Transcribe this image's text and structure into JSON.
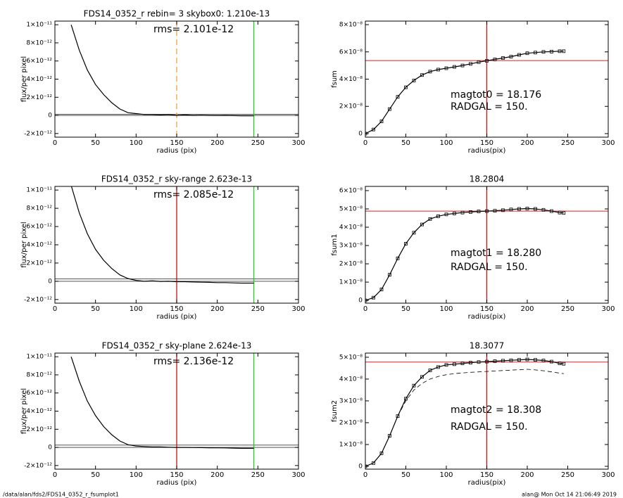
{
  "chart_data": [
    {
      "type": "line",
      "title": "FDS14_0352_r rebin= 3    skybox0:  1.210e-13",
      "x_label": "radius (pix)",
      "y_label": "flux/per pixel",
      "annotations": [
        "rms= 2.101e-12"
      ],
      "xlim": [
        0,
        300
      ],
      "xticks": [
        0,
        50,
        100,
        150,
        200,
        250,
        300
      ],
      "ylim": [
        -2.4e-12,
        1.04e-11
      ],
      "yticks": [
        {
          "value": -2e-12,
          "label": "-2×10⁻¹²"
        },
        0,
        {
          "value": 2e-12,
          "label": "2×10⁻¹²"
        },
        {
          "value": 4e-12,
          "label": "4×10⁻¹²"
        },
        {
          "value": 6e-12,
          "label": "6×10⁻¹²"
        },
        {
          "value": 8e-12,
          "label": "8×10⁻¹²"
        },
        {
          "value": 1e-11,
          "label": "1×10⁻¹¹"
        }
      ],
      "x": [
        20,
        30,
        40,
        50,
        60,
        70,
        80,
        90,
        100,
        110,
        120,
        130,
        140,
        150,
        160,
        170,
        180,
        190,
        200,
        210,
        220,
        230,
        240,
        245
      ],
      "series": [
        {
          "color": "#000000",
          "values": [
            1e-11,
            7.2e-12,
            5e-12,
            3.4e-12,
            2.3e-12,
            1.4e-12,
            7e-13,
            3e-13,
            2e-13,
            1e-13,
            1e-13,
            5e-14,
            1e-13,
            0,
            5e-14,
            0,
            2e-14,
            0,
            -2e-14,
            0,
            -3e-14,
            -5e-14,
            -5e-14,
            -5e-14
          ]
        }
      ],
      "hlines": [
        {
          "value": 0,
          "color": "#555555"
        },
        {
          "value": 1.2e-13,
          "color": "#555555"
        }
      ],
      "vlines": [
        {
          "value": 150,
          "color": "#f0a040",
          "dash": true
        },
        {
          "value": 245,
          "color": "#22cc22"
        }
      ]
    },
    {
      "type": "line",
      "x_label": "radius(pix)",
      "y_label": "fsum",
      "annotations": [
        "magtot0 =  18.176",
        "RADGAL =    150."
      ],
      "xlim": [
        0,
        300
      ],
      "xticks": [
        0,
        50,
        100,
        150,
        200,
        250,
        300
      ],
      "ylim": [
        -2.6e-09,
        8.26e-08
      ],
      "yticks": [
        0,
        {
          "value": 2e-08,
          "label": "2×10⁻⁸"
        },
        {
          "value": 4e-08,
          "label": "4×10⁻⁸"
        },
        {
          "value": 6e-08,
          "label": "6×10⁻⁸"
        },
        {
          "value": 8e-08,
          "label": "8×10⁻⁸"
        }
      ],
      "marker": "square",
      "x": [
        0,
        10,
        20,
        30,
        40,
        50,
        60,
        70,
        80,
        90,
        100,
        110,
        120,
        130,
        140,
        150,
        160,
        170,
        180,
        190,
        200,
        210,
        220,
        230,
        240,
        245
      ],
      "series": [
        {
          "color": "#000000",
          "values": [
            0,
            3e-09,
            9e-09,
            1.8e-08,
            2.7e-08,
            3.4e-08,
            3.9e-08,
            4.3e-08,
            4.55e-08,
            4.7e-08,
            4.8e-08,
            4.9e-08,
            5e-08,
            5.12e-08,
            5.25e-08,
            5.35e-08,
            5.45e-08,
            5.55e-08,
            5.65e-08,
            5.78e-08,
            5.9e-08,
            5.95e-08,
            6e-08,
            6.02e-08,
            6.05e-08,
            6.05e-08
          ]
        }
      ],
      "hlines": [
        {
          "value": 5.36e-08,
          "color": "#dd2222"
        }
      ],
      "vlines": [
        {
          "value": 150,
          "color": "#cc1111"
        }
      ]
    },
    {
      "type": "line",
      "title": "FDS14_0352_r sky-range  2.623e-13",
      "x_label": "radius (pix)",
      "y_label": "flux/per pixel",
      "annotations": [
        "rms= 2.085e-12"
      ],
      "xlim": [
        0,
        300
      ],
      "xticks": [
        0,
        50,
        100,
        150,
        200,
        250,
        300
      ],
      "ylim": [
        -2.4e-12,
        1.04e-11
      ],
      "yticks": [
        {
          "value": -2e-12,
          "label": "-2×10⁻¹²"
        },
        0,
        {
          "value": 2e-12,
          "label": "2×10⁻¹²"
        },
        {
          "value": 4e-12,
          "label": "4×10⁻¹²"
        },
        {
          "value": 6e-12,
          "label": "6×10⁻¹²"
        },
        {
          "value": 8e-12,
          "label": "8×10⁻¹²"
        },
        {
          "value": 1e-11,
          "label": "1×10⁻¹¹"
        }
      ],
      "x": [
        20,
        30,
        40,
        50,
        60,
        70,
        80,
        90,
        100,
        110,
        120,
        130,
        140,
        150,
        160,
        170,
        180,
        190,
        200,
        210,
        220,
        230,
        240,
        245
      ],
      "series": [
        {
          "color": "#000000",
          "values": [
            1.05e-11,
            7.5e-12,
            5.2e-12,
            3.5e-12,
            2.3e-12,
            1.4e-12,
            7e-13,
            3e-13,
            1e-13,
            0,
            5e-14,
            -2e-14,
            0,
            -5e-14,
            -5e-14,
            -8e-14,
            -1e-13,
            -1.2e-13,
            -1.5e-13,
            -1.5e-13,
            -1.8e-13,
            -2e-13,
            -2e-13,
            -2e-13
          ]
        }
      ],
      "hlines": [
        {
          "value": 0,
          "color": "#555555"
        },
        {
          "value": 2.6e-13,
          "color": "#555555"
        }
      ],
      "vlines": [
        {
          "value": 150,
          "color": "#cc1111"
        },
        {
          "value": 245,
          "color": "#22cc22"
        }
      ]
    },
    {
      "type": "line",
      "title": "18.2804",
      "x_label": "radius(pix)",
      "y_label": "fsum1",
      "annotations": [
        "magtot1 =  18.280",
        "RADGAL =    150."
      ],
      "xlim": [
        0,
        300
      ],
      "xticks": [
        0,
        50,
        100,
        150,
        200,
        250,
        300
      ],
      "ylim": [
        -1.5e-09,
        6.23e-08
      ],
      "yticks": [
        0,
        {
          "value": 1e-08,
          "label": "1×10⁻⁸"
        },
        {
          "value": 2e-08,
          "label": "2×10⁻⁸"
        },
        {
          "value": 3e-08,
          "label": "3×10⁻⁸"
        },
        {
          "value": 4e-08,
          "label": "4×10⁻⁸"
        },
        {
          "value": 5e-08,
          "label": "5×10⁻⁸"
        },
        {
          "value": 6e-08,
          "label": "6×10⁻⁸"
        }
      ],
      "marker": "square",
      "x": [
        0,
        10,
        20,
        30,
        40,
        50,
        60,
        70,
        80,
        90,
        100,
        110,
        120,
        130,
        140,
        150,
        160,
        170,
        180,
        190,
        200,
        210,
        220,
        230,
        240,
        245
      ],
      "series": [
        {
          "color": "#000000",
          "values": [
            0,
            1.5e-09,
            6e-09,
            1.4e-08,
            2.3e-08,
            3.1e-08,
            3.7e-08,
            4.15e-08,
            4.45e-08,
            4.6e-08,
            4.7e-08,
            4.75e-08,
            4.8e-08,
            4.83e-08,
            4.86e-08,
            4.88e-08,
            4.9e-08,
            4.93e-08,
            4.97e-08,
            5e-08,
            5.02e-08,
            5e-08,
            4.95e-08,
            4.88e-08,
            4.8e-08,
            4.78e-08
          ]
        }
      ],
      "hlines": [
        {
          "value": 4.88e-08,
          "color": "#dd2222"
        }
      ],
      "vlines": [
        {
          "value": 150,
          "color": "#cc1111"
        }
      ]
    },
    {
      "type": "line",
      "title": "FDS14_0352_r sky-plane  2.624e-13",
      "x_label": "radius (pix)",
      "y_label": "flux/per pixel",
      "annotations": [
        "rms= 2.136e-12"
      ],
      "xlim": [
        0,
        300
      ],
      "xticks": [
        0,
        50,
        100,
        150,
        200,
        250,
        300
      ],
      "ylim": [
        -2.4e-12,
        1.04e-11
      ],
      "yticks": [
        {
          "value": -2e-12,
          "label": "-2×10⁻¹²"
        },
        0,
        {
          "value": 2e-12,
          "label": "2×10⁻¹²"
        },
        {
          "value": 4e-12,
          "label": "4×10⁻¹²"
        },
        {
          "value": 6e-12,
          "label": "6×10⁻¹²"
        },
        {
          "value": 8e-12,
          "label": "8×10⁻¹²"
        },
        {
          "value": 1e-11,
          "label": "1×10⁻¹¹"
        }
      ],
      "x": [
        20,
        30,
        40,
        50,
        60,
        70,
        80,
        90,
        100,
        110,
        120,
        130,
        140,
        150,
        160,
        170,
        180,
        190,
        200,
        210,
        220,
        230,
        240,
        245
      ],
      "series": [
        {
          "color": "#000000",
          "values": [
            1e-11,
            7.3e-12,
            5.1e-12,
            3.5e-12,
            2.3e-12,
            1.4e-12,
            7e-13,
            3e-13,
            1.5e-13,
            1e-13,
            5e-14,
            5e-14,
            2e-14,
            0,
            0,
            -2e-14,
            -3e-14,
            -4e-14,
            -5e-14,
            -6e-14,
            -8e-14,
            -1e-13,
            -1e-13,
            -1e-13
          ]
        }
      ],
      "hlines": [
        {
          "value": 0,
          "color": "#555555"
        },
        {
          "value": 2.6e-13,
          "color": "#555555"
        }
      ],
      "vlines": [
        {
          "value": 150,
          "color": "#cc1111"
        },
        {
          "value": 245,
          "color": "#22cc22"
        }
      ]
    },
    {
      "type": "line",
      "title": "18.3077",
      "x_label": "radius(pix)",
      "y_label": "fsum2",
      "annotations": [
        "magtot2 =  18.308",
        "RADGAL =    150."
      ],
      "xlim": [
        0,
        300
      ],
      "xticks": [
        0,
        50,
        100,
        150,
        200,
        250,
        300
      ],
      "ylim": [
        -1.3e-09,
        5.19e-08
      ],
      "yticks": [
        0,
        {
          "value": 1e-08,
          "label": "1×10⁻⁸"
        },
        {
          "value": 2e-08,
          "label": "2×10⁻⁸"
        },
        {
          "value": 3e-08,
          "label": "3×10⁻⁸"
        },
        {
          "value": 4e-08,
          "label": "4×10⁻⁸"
        },
        {
          "value": 5e-08,
          "label": "5×10⁻⁸"
        }
      ],
      "marker": "square",
      "x": [
        0,
        10,
        20,
        30,
        40,
        50,
        60,
        70,
        80,
        90,
        100,
        110,
        120,
        130,
        140,
        150,
        160,
        170,
        180,
        190,
        200,
        210,
        220,
        230,
        240,
        245
      ],
      "series": [
        {
          "color": "#000000",
          "values": [
            0,
            1.5e-09,
            6e-09,
            1.4e-08,
            2.3e-08,
            3.1e-08,
            3.7e-08,
            4.1e-08,
            4.4e-08,
            4.55e-08,
            4.65e-08,
            4.68e-08,
            4.72e-08,
            4.75e-08,
            4.78e-08,
            4.8e-08,
            4.82e-08,
            4.84e-08,
            4.86e-08,
            4.88e-08,
            4.9e-08,
            4.88e-08,
            4.85e-08,
            4.8e-08,
            4.72e-08,
            4.7e-08
          ]
        },
        {
          "color": "#000000",
          "dash": true,
          "marker": "none",
          "values": [
            null,
            null,
            null,
            null,
            2.3e-08,
            3e-08,
            3.5e-08,
            3.8e-08,
            4e-08,
            4.12e-08,
            4.2e-08,
            4.25e-08,
            4.28e-08,
            4.31e-08,
            4.33e-08,
            4.35e-08,
            4.37e-08,
            4.39e-08,
            4.41e-08,
            4.43e-08,
            4.45e-08,
            4.42e-08,
            4.38e-08,
            4.33e-08,
            4.27e-08,
            4.25e-08
          ]
        }
      ],
      "hlines": [
        {
          "value": 4.78e-08,
          "color": "#dd2222"
        }
      ],
      "vlines": [
        {
          "value": 150,
          "color": "#cc1111"
        }
      ]
    }
  ],
  "footer": {
    "left": "/data/alan/fds2/FDS14_0352_r_fsumplot1",
    "right": "alan@  Mon Oct 14 21:06:49 2019"
  }
}
